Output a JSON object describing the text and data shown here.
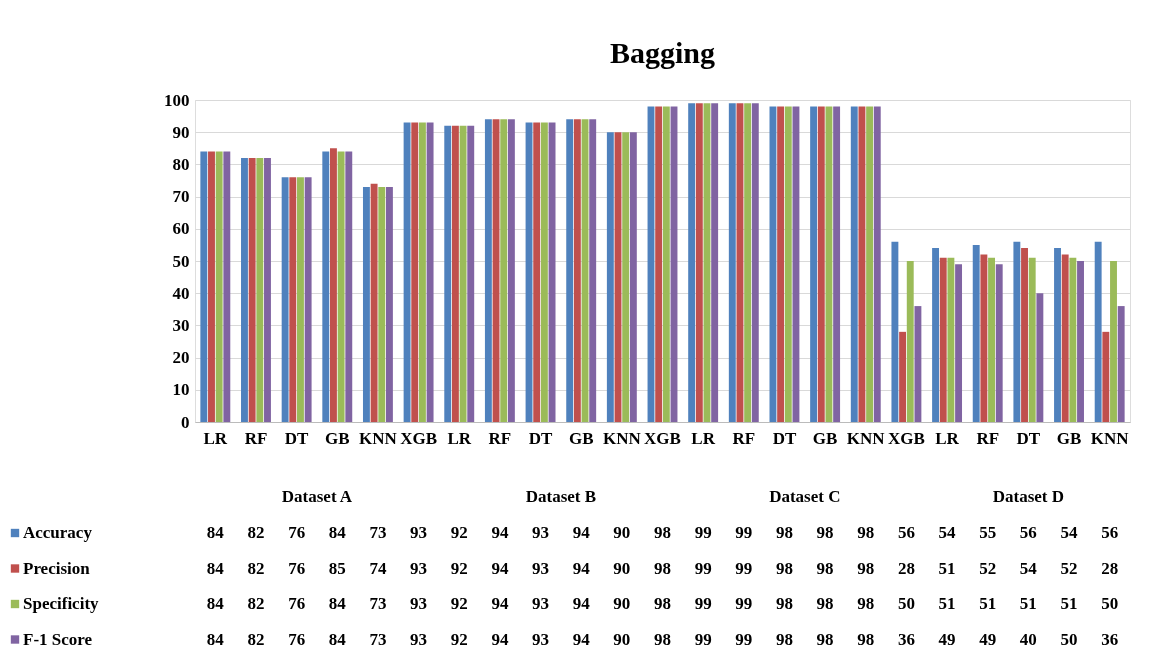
{
  "chart_data": {
    "type": "bar",
    "title": "Bagging",
    "categories": [
      "LR",
      "RF",
      "DT",
      "GB",
      "KNN",
      "XGB",
      "LR",
      "RF",
      "DT",
      "GB",
      "KNN",
      "XGB",
      "LR",
      "RF",
      "DT",
      "GB",
      "KNN",
      "XGB",
      "LR",
      "RF",
      "DT",
      "GB",
      "KNN"
    ],
    "series": [
      {
        "name": "Accuracy",
        "color": "#4f81bd",
        "values": [
          84,
          82,
          76,
          84,
          73,
          93,
          92,
          94,
          93,
          94,
          90,
          98,
          99,
          99,
          98,
          98,
          98,
          56,
          54,
          55,
          56,
          54,
          56
        ]
      },
      {
        "name": "Precision",
        "color": "#c0504d",
        "values": [
          84,
          82,
          76,
          85,
          74,
          93,
          92,
          94,
          93,
          94,
          90,
          98,
          99,
          99,
          98,
          98,
          98,
          28,
          51,
          52,
          54,
          52,
          28
        ]
      },
      {
        "name": "Specificity",
        "color": "#9bbb59",
        "values": [
          84,
          82,
          76,
          84,
          73,
          93,
          92,
          94,
          93,
          94,
          90,
          98,
          99,
          99,
          98,
          98,
          98,
          50,
          51,
          51,
          51,
          51,
          50
        ]
      },
      {
        "name": "F-1 Score",
        "color": "#8064a2",
        "values": [
          84,
          82,
          76,
          84,
          73,
          93,
          92,
          94,
          93,
          94,
          90,
          98,
          99,
          99,
          98,
          98,
          98,
          36,
          49,
          49,
          40,
          50,
          36
        ]
      }
    ],
    "annotations": [
      "Dataset A",
      "Dataset B",
      "Dataset C",
      "Dataset D"
    ],
    "ylim": [
      0,
      100
    ],
    "yticks": [
      0,
      10,
      20,
      30,
      40,
      50,
      60,
      70,
      80,
      90,
      100
    ],
    "grid": "y",
    "legend": "bottom",
    "data_labels": true
  }
}
